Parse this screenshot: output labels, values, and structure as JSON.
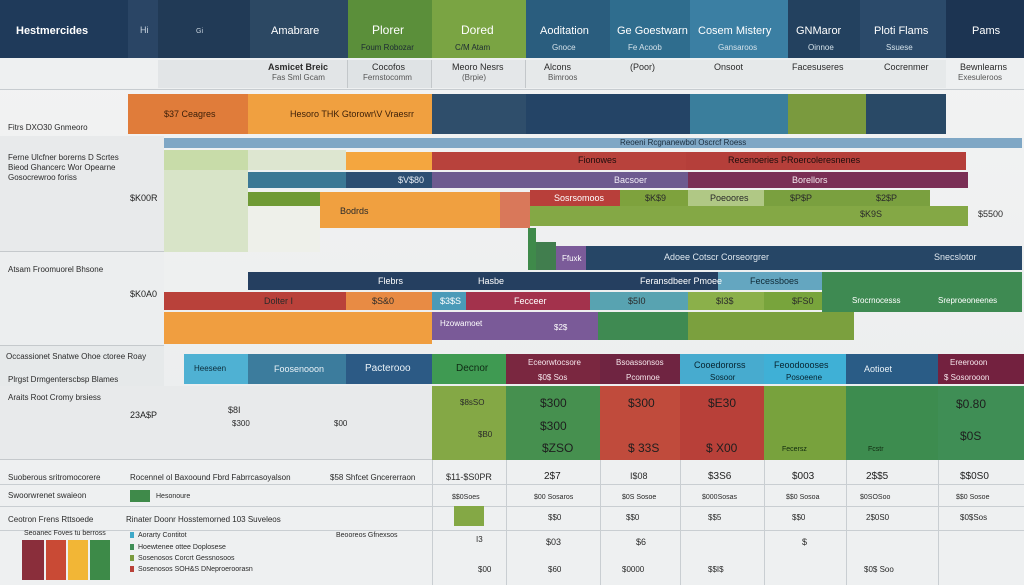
{
  "colors": {
    "navy": "#243f5e",
    "orange": "#e8913b",
    "olive": "#7a9a3e",
    "teal": "#2e6a84",
    "red": "#b94138",
    "green": "#3f8e56",
    "maroon": "#7d2c45",
    "cyan": "#3fa9c9",
    "grey": "#e6e8e9"
  },
  "header": {
    "cols": [
      {
        "title": "Hestmercides",
        "sub": ""
      },
      {
        "title": "Amabrare",
        "sub": ""
      },
      {
        "title": "Plorer",
        "sub": "Foum Robozar"
      },
      {
        "title": "Dored",
        "sub": "C/M Atam"
      },
      {
        "title": "Aoditation",
        "sub": "Gnoce"
      },
      {
        "title": "Ge Goestwarn",
        "sub": "Fe Acoob"
      },
      {
        "title": "Cosem Mistery",
        "sub": "Gansaroos"
      },
      {
        "title": "GNMaror",
        "sub": "Oinnoe"
      },
      {
        "title": "Ploti Flams",
        "sub": "Ssuese"
      },
      {
        "title": "Pams",
        "sub": ""
      }
    ],
    "row2": [
      "Asmicet Breic",
      "Fas Sml Gcam",
      "Cocofos",
      "Fernstocomm",
      "Meoro Nesrs",
      "(Brpie)",
      "Alcons",
      "Bimroos",
      "(Poor)",
      "Onsoot",
      "Facesuseres",
      "Cocrenmer",
      "Bewnlearns",
      "Exesuleroos"
    ]
  },
  "left": {
    "r1": "Fitrs DXO30 Gnmeoro",
    "r2a": "Ferne Ulcfner borerns D Scrtes",
    "r2b": "Bieod Ghancerc Wor Opearne",
    "r2c": "Gosocrewroo foriss",
    "v1": "$K00R",
    "r3": "Atsam Froomuorel Bhsone",
    "v2": "$K0A0",
    "r4a": "Occassionet Snatwe Ohoe ctoree Roay",
    "r4b": "Plrgst Drmgenterscbsp Blames",
    "r5": "Araits Root Cromy brsiess",
    "v3": "23A$P",
    "r6": "Suoberous sritromocorere",
    "r7": "Swoorwrenet swaieon",
    "r8": "Ceotron Frens Rttsoede",
    "s1": "Rocennel ol Baxoound Fbrd Fabrrcasoyalson",
    "s2": "Hesonoure",
    "s3": "Rinater Doonr Hosstemorned 103 Suveleos",
    "s4": "$58 Shfcet Gncererraon",
    "leg1": "Aorarty Contitot",
    "leg2": "Hoewtenee ottee Doplosese",
    "leg3": "Sosenosos Corcrt Gessnosoos",
    "leg4": "Sosenosos SOH&S DNeproeroorasn",
    "bl1": "Beooreos Gfnexsos"
  },
  "bars": {
    "orange1": "$37 Ceagres",
    "orange2": "Hesoro THK Gtorowr\\V Vraesrr",
    "top_line": "Reoeni Rcgnanewbol Oscrcf Roess",
    "r1a": "Fionowes",
    "r1b": "Recenoeries PRoercoleresnenes",
    "b1": "$V$80",
    "b2": "Bacsoer",
    "b3": "Borellors",
    "b4": "Bodrds",
    "b5": "Sosrsomoos",
    "b6": "$K$9",
    "b7": "Poeoores",
    "b8": "$P$P",
    "b9": "$2$P",
    "b10": "$K9S",
    "b11": "$5500",
    "b12": "Ffuxk",
    "b13": "Adoee Cotscr Corseorgrer",
    "b14": "Snecslotor",
    "c1": "Flebrs",
    "c2": "Hasbe",
    "c3": "Feransdbeer Pmoee",
    "c4": "Fecessboes",
    "c5": "Dolter I",
    "c6": "$S&0",
    "c7": "$3$S",
    "c8": "Fecceer",
    "c9": "$5I0",
    "c10": "$I3$",
    "c11": "$FS0",
    "c12": "Srocrnocesss",
    "c13": "Sreproeoneenes",
    "d1": "Hzowamoet",
    "d2": "$2$"
  },
  "mid": {
    "m1": "Heeseen",
    "m2": "Foosenooon",
    "m3": "Pacterooo",
    "m4": "Decnor",
    "m5": "Eceorwtocsore",
    "m5b": "$0$ Sos",
    "m6": "Bsoassonsos",
    "m6b": "Pcomnoe",
    "m7": "Cooedororss",
    "m7b": "Sosoor",
    "m8": "Feoodoooses",
    "m8b": "Posoeene",
    "m9": "Aotioet",
    "m10": "Ereerooon",
    "m10b": "$ Sosorooon"
  },
  "values": {
    "v_g1": "$8sSO",
    "v_g2": "$B0",
    "v_g3": "$300",
    "v_g4": "$ZSO",
    "v_g5": "$8I",
    "v_g6": "$300",
    "v_g7": "$00",
    "v_g8": "$300",
    "v_r1": "$300",
    "v_r2": "$E30",
    "v_r3": "$ 33S",
    "v_r4": "$ X00",
    "v_t1": "$0.80",
    "v_t2": "$0S",
    "v_t3": "Fecersz",
    "v_t4": "Fcstr",
    "w1": "$11-$S0PR",
    "w2": "$$0Soes",
    "w3": "2$7",
    "w4": "$00 Sosaros",
    "w5": "$$0",
    "w6": "I3",
    "w7": "$03",
    "w8": "$0S Sosoe",
    "w9": "I$08",
    "w10": "$6",
    "w11": "$0000",
    "w12": "$3S6",
    "w13": "$000Sosas",
    "w14": "$003",
    "w15": "$",
    "w16": "2$$5",
    "w17": "$0SOSoo",
    "w18": "2$0S0",
    "w19": "$$0",
    "w20": "$$5",
    "w21": "$$0 Sosoa",
    "w22": "$$0S0",
    "w23": "$$0",
    "w24": "$0$ Soo",
    "w25": "$00",
    "w26": "$60",
    "w27": "$$I$"
  }
}
